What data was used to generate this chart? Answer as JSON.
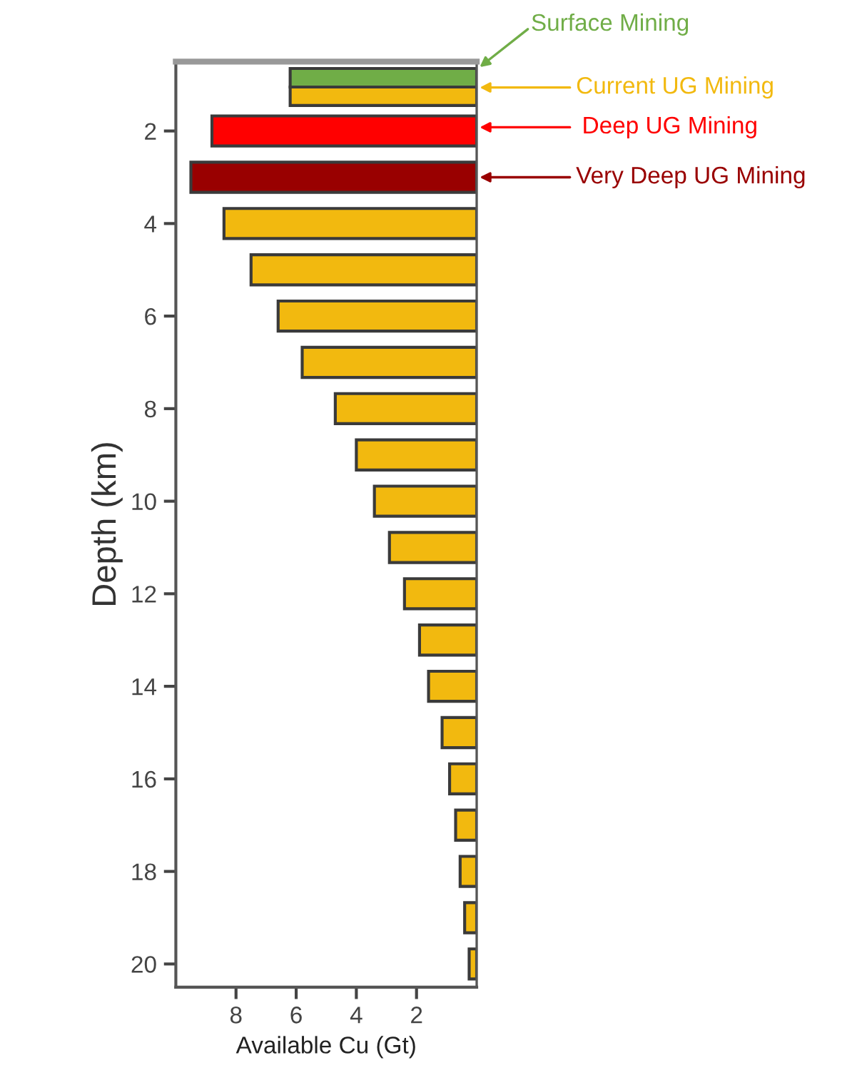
{
  "chart_data": {
    "type": "bar",
    "orientation": "horizontal",
    "xlabel": "Available Cu (Gt)",
    "ylabel": "Depth (km)",
    "x": [
      0.85,
      1.25,
      2,
      3,
      4,
      5,
      6,
      7,
      8,
      9,
      10,
      11,
      12,
      13,
      14,
      15,
      16,
      17,
      18,
      19,
      20
    ],
    "values": [
      6.2,
      6.2,
      8.8,
      9.5,
      8.4,
      7.5,
      6.6,
      5.8,
      4.7,
      4.0,
      3.4,
      2.9,
      2.4,
      1.9,
      1.6,
      1.15,
      0.9,
      0.7,
      0.55,
      0.4,
      0.25
    ],
    "colors": [
      "#70ad47",
      "#f2b90f",
      "#ff0000",
      "#990000",
      "#f2b90f",
      "#f2b90f",
      "#f2b90f",
      "#f2b90f",
      "#f2b90f",
      "#f2b90f",
      "#f2b90f",
      "#f2b90f",
      "#f2b90f",
      "#f2b90f",
      "#f2b90f",
      "#f2b90f",
      "#f2b90f",
      "#f2b90f",
      "#f2b90f",
      "#f2b90f",
      "#f2b90f"
    ],
    "xlim": [
      10,
      0
    ],
    "xticks": [
      8,
      6,
      4,
      2
    ],
    "ylim": [
      20.5,
      0.5
    ],
    "yticks": [
      2,
      4,
      6,
      8,
      10,
      12,
      14,
      16,
      18,
      20
    ],
    "grid": false,
    "annotations": [
      "Surface Mining",
      "Current UG Mining",
      "Deep UG Mining",
      "Very Deep UG Mining"
    ]
  }
}
